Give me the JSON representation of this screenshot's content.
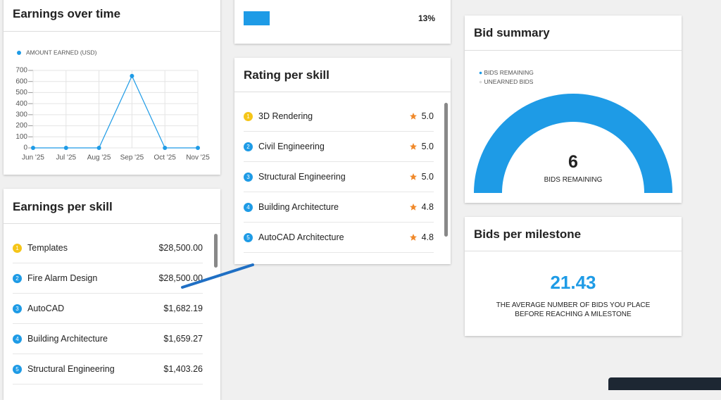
{
  "earnings_over_time": {
    "title": "Earnings over time",
    "chart": {
      "type": "line",
      "x": [
        "Jun '25",
        "Jul '25",
        "Aug '25",
        "Sep '25",
        "Oct '25",
        "Nov '25"
      ],
      "series": [
        {
          "name": "AMOUNT EARNED (USD)",
          "color": "#1e9be6",
          "values": [
            0,
            0,
            0,
            650,
            0,
            0
          ]
        }
      ],
      "ylim": [
        0,
        700
      ],
      "yticks": [
        0,
        100,
        200,
        300,
        400,
        500,
        600,
        700
      ],
      "grid": true
    }
  },
  "rate_card": {
    "value": "13%"
  },
  "rating_per_skill": {
    "title": "Rating per skill",
    "items": [
      {
        "rank": "1",
        "skill": "3D Rendering",
        "rating": "5.0"
      },
      {
        "rank": "2",
        "skill": "Civil Engineering",
        "rating": "5.0"
      },
      {
        "rank": "3",
        "skill": "Structural Engineering",
        "rating": "5.0"
      },
      {
        "rank": "4",
        "skill": "Building Architecture",
        "rating": "4.8"
      },
      {
        "rank": "5",
        "skill": "AutoCAD Architecture",
        "rating": "4.8"
      }
    ]
  },
  "earnings_per_skill": {
    "title": "Earnings per skill",
    "items": [
      {
        "rank": "1",
        "skill": "Templates",
        "amount": "$28,500.00"
      },
      {
        "rank": "2",
        "skill": "Fire Alarm Design",
        "amount": "$28,500.00"
      },
      {
        "rank": "3",
        "skill": "AutoCAD",
        "amount": "$1,682.19"
      },
      {
        "rank": "4",
        "skill": "Building Architecture",
        "amount": "$1,659.27"
      },
      {
        "rank": "5",
        "skill": "Structural Engineering",
        "amount": "$1,403.26"
      }
    ]
  },
  "bid_summary": {
    "title": "Bid summary",
    "legend": [
      "BIDS REMAINING",
      "UNEARNED BIDS"
    ],
    "value": "6",
    "value_label": "BIDS REMAINING"
  },
  "bids_per_milestone": {
    "title": "Bids per milestone",
    "value": "21.43",
    "description": "THE AVERAGE NUMBER OF BIDS YOU PLACE BEFORE REACHING A MILESTONE"
  }
}
